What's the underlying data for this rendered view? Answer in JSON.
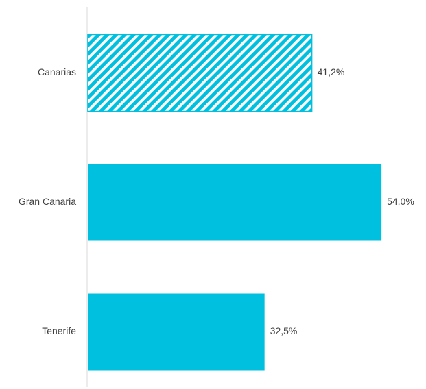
{
  "chart_data": {
    "type": "bar",
    "orientation": "horizontal",
    "categories": [
      "Canarias",
      "Gran Canaria",
      "Tenerife"
    ],
    "values": [
      41.2,
      54.0,
      32.5
    ],
    "value_labels": [
      "41,2%",
      "54,0%",
      "32,5%"
    ],
    "patterns": [
      "hatched",
      "solid",
      "solid"
    ],
    "xlim": [
      0,
      55.5
    ],
    "unit": "%",
    "colors": {
      "bar": "#00C0E0",
      "axis": "#D9D9D9",
      "text": "#404040"
    },
    "grid": false,
    "legend": "none"
  }
}
